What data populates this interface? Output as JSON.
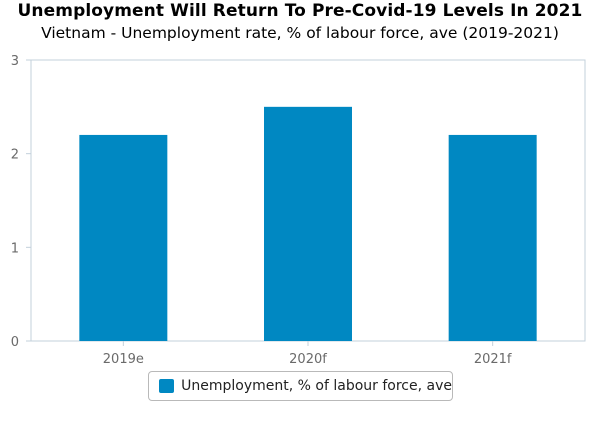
{
  "chart_data": {
    "type": "bar",
    "title": "Unemployment Will Return To Pre-Covid-19 Levels In 2021",
    "subtitle": "Vietnam - Unemployment rate, % of labour force, ave (2019-2021)",
    "categories": [
      "2019e",
      "2020f",
      "2021f"
    ],
    "series": [
      {
        "name": "Unemployment, % of labour force, ave",
        "values": [
          2.2,
          2.5,
          2.2
        ]
      }
    ],
    "ylim": [
      0,
      3
    ],
    "yticks": [
      "0",
      "1",
      "2",
      "3"
    ],
    "xlabel": "",
    "ylabel": "",
    "grid": false,
    "legend_position": "bottom",
    "colors": {
      "bar": "#0088c2",
      "axis": "#c3d0db",
      "tick_text": "#6a6a6a"
    }
  }
}
